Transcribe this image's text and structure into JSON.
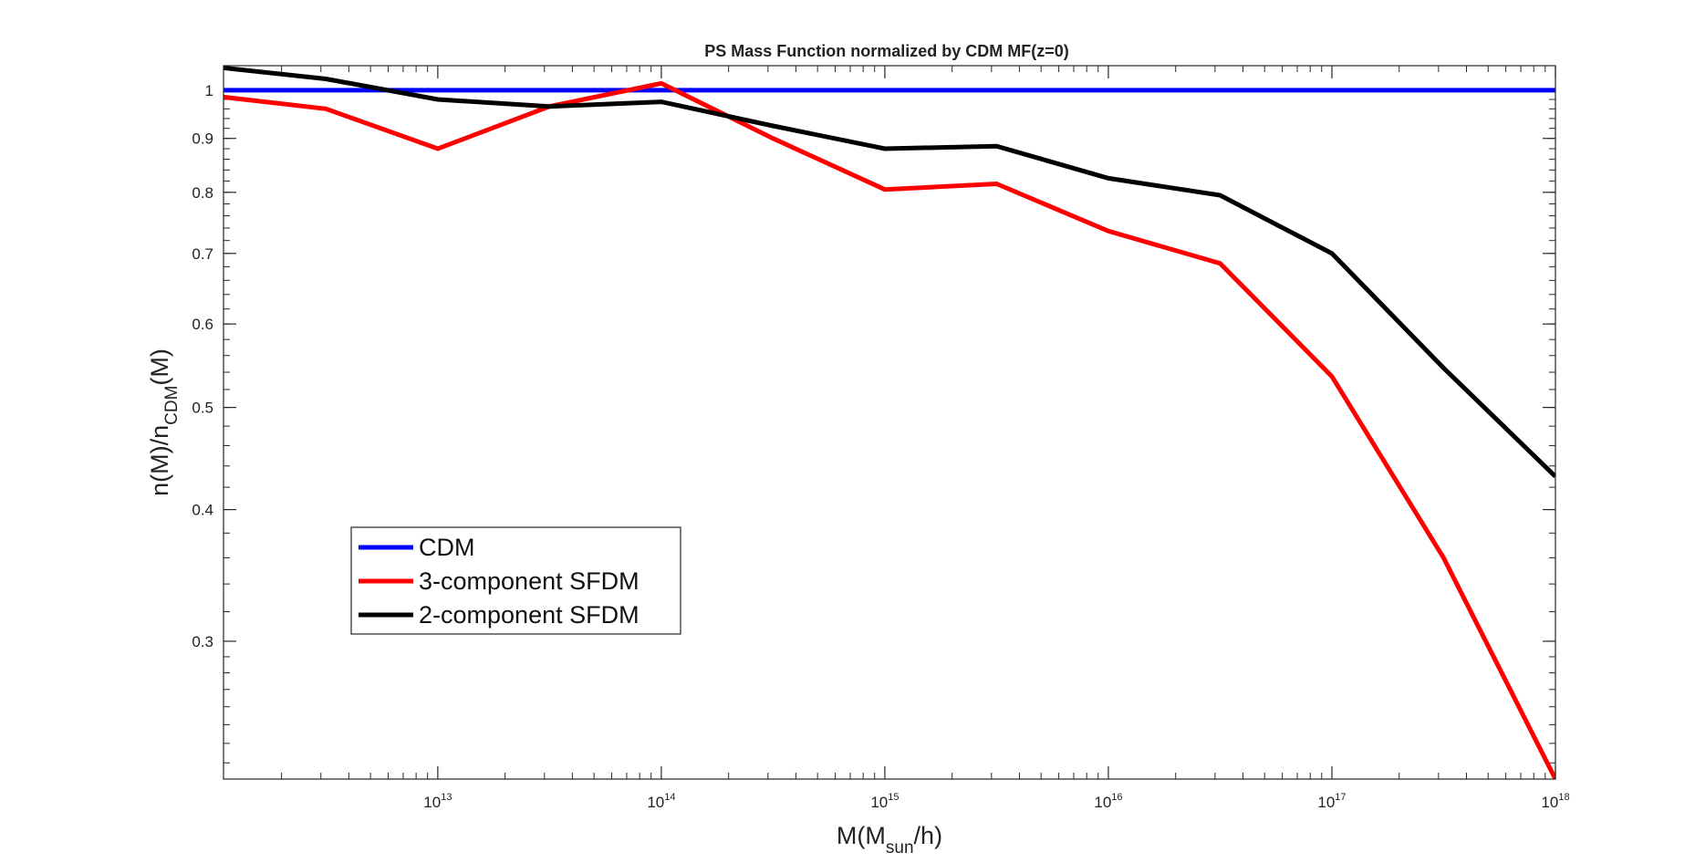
{
  "chart_data": {
    "type": "line",
    "title": "PS Mass Function normalized by CDM MF(z=0)",
    "xlabel": {
      "prefix": "M(M",
      "sub": "sun",
      "suffix": "/h)"
    },
    "ylabel": {
      "prefix": "n(M)/n",
      "sub": "CDM",
      "suffix": "(M)"
    },
    "xscale": "log",
    "yscale": "log",
    "xlim": [
      1100000000000.0,
      1e+18
    ],
    "ylim": [
      0.222,
      1.055
    ],
    "x_ticks": [
      {
        "base": "10",
        "exp": "13",
        "value": 10000000000000.0
      },
      {
        "base": "10",
        "exp": "14",
        "value": 100000000000000.0
      },
      {
        "base": "10",
        "exp": "15",
        "value": 1000000000000000.0
      },
      {
        "base": "10",
        "exp": "16",
        "value": 1e+16
      },
      {
        "base": "10",
        "exp": "17",
        "value": 1e+17
      },
      {
        "base": "10",
        "exp": "18",
        "value": 1e+18
      }
    ],
    "y_ticks": [
      {
        "label": "0.3",
        "value": 0.3
      },
      {
        "label": "0.4",
        "value": 0.4
      },
      {
        "label": "0.5",
        "value": 0.5
      },
      {
        "label": "0.6",
        "value": 0.6
      },
      {
        "label": "0.7",
        "value": 0.7
      },
      {
        "label": "0.8",
        "value": 0.8
      },
      {
        "label": "0.9",
        "value": 0.9
      },
      {
        "label": "1",
        "value": 1.0
      }
    ],
    "x": [
      1100000000000.0,
      3160000000000.0,
      10000000000000.0,
      31600000000000.0,
      100000000000000.0,
      316000000000000.0,
      1000000000000000.0,
      3160000000000000.0,
      1e+16,
      3.16e+16,
      1e+17,
      3.16e+17,
      1e+18
    ],
    "series": [
      {
        "name": "CDM",
        "color": "#0000ff",
        "values": [
          1,
          1,
          1,
          1,
          1,
          1,
          1,
          1,
          1,
          1,
          1,
          1,
          1
        ]
      },
      {
        "name": "3-component SFDM",
        "color": "#ff0000",
        "values": [
          0.985,
          0.96,
          0.88,
          0.965,
          1.015,
          0.9,
          0.805,
          0.815,
          0.735,
          0.685,
          0.535,
          0.36,
          0.222
        ]
      },
      {
        "name": "2-component SFDM",
        "color": "#000000",
        "values": [
          1.05,
          1.025,
          0.98,
          0.965,
          0.975,
          0.925,
          0.88,
          0.885,
          0.825,
          0.795,
          0.7,
          0.545,
          0.43
        ]
      }
    ],
    "grid": false,
    "legend_position": "lower-left"
  }
}
